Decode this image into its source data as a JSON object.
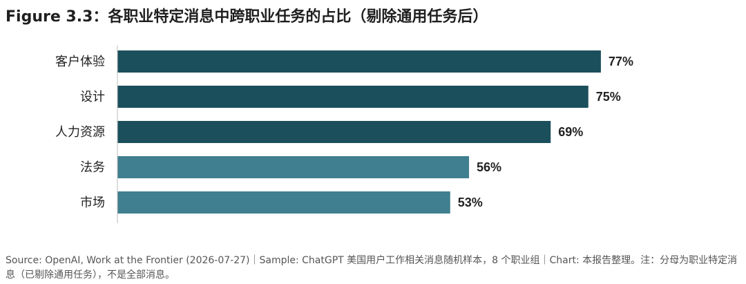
{
  "chart_data": {
    "type": "bar",
    "orientation": "horizontal",
    "title": "Figure 3.3：各职业特定消息中跨职业任务的占比（剔除通用任务后）",
    "categories": [
      "客户体验",
      "设计",
      "人力资源",
      "法务",
      "市场"
    ],
    "values": [
      77,
      75,
      69,
      56,
      53
    ],
    "value_labels": [
      "77%",
      "75%",
      "69%",
      "56%",
      "53%"
    ],
    "bar_colors": [
      "#1b4f5c",
      "#1b4f5c",
      "#1b4f5c",
      "#3f7f8f",
      "#3f7f8f"
    ],
    "xlim": [
      0,
      100
    ],
    "xlabel": "",
    "ylabel": "",
    "grid": false,
    "legend": "none"
  },
  "footnote": "Source: OpenAI, Work at the Frontier (2026-07-27)｜Sample: ChatGPT 美国用户工作相关消息随机样本，8 个职业组｜Chart: 本报告整理。注：分母为职业特定消息（已剔除通用任务），不是全部消息。"
}
